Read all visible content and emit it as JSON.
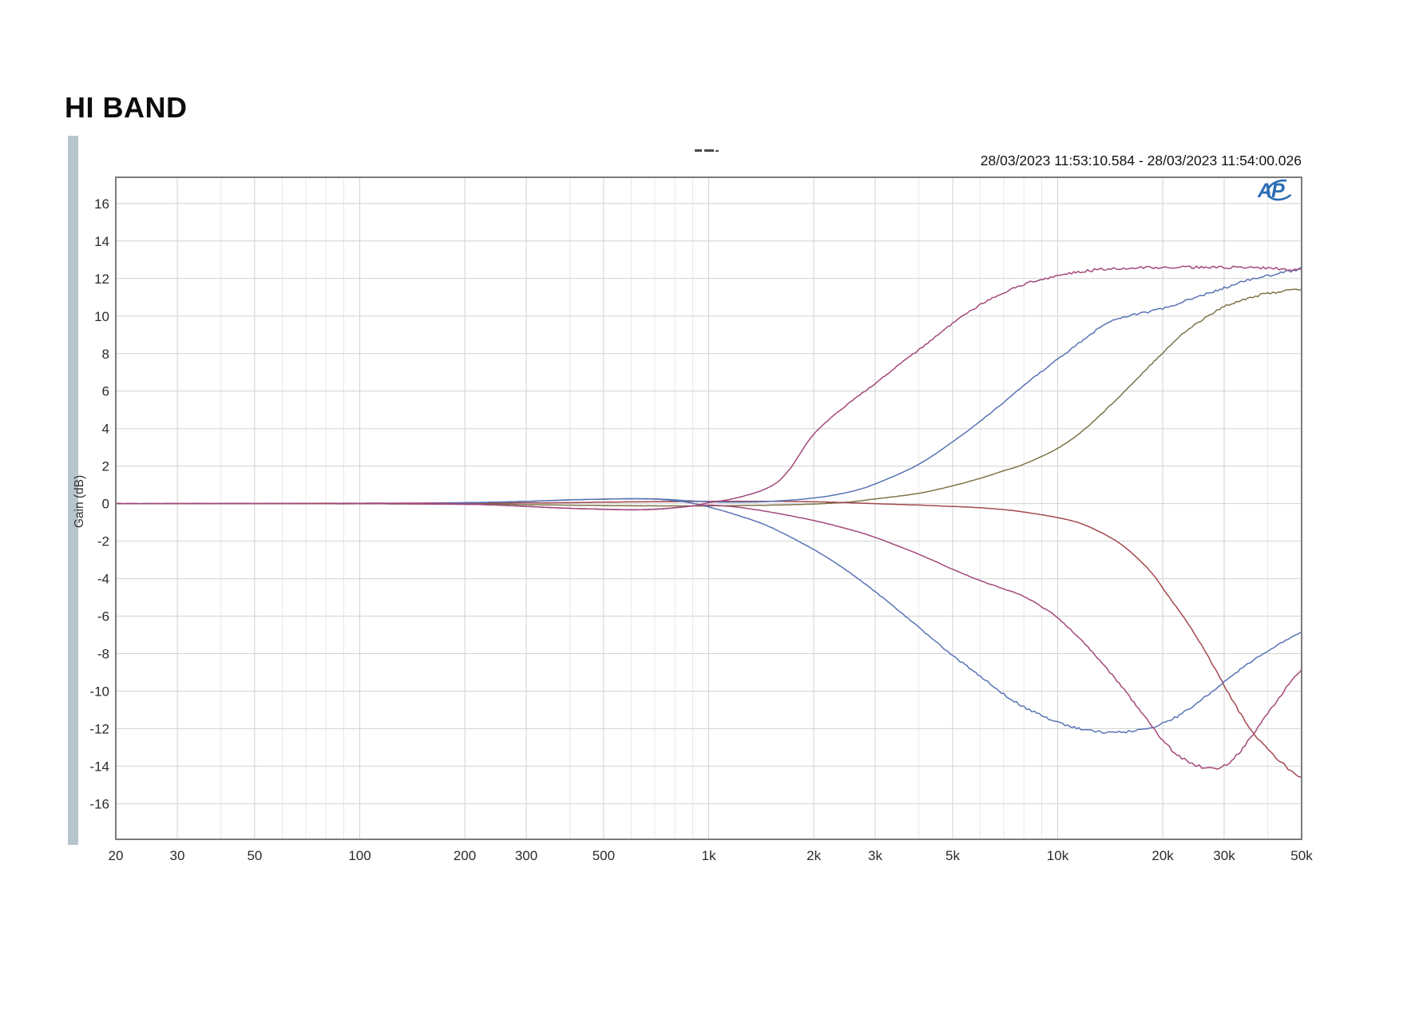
{
  "header": {
    "title": "HI BAND",
    "timestamp": "28/03/2023 11:53:10.584 - 28/03/2023 11:54:00.026"
  },
  "logo": {
    "text": "AP"
  },
  "colors": {
    "accent_bar": "#b7c5cd",
    "grid_major": "#d2d2d2",
    "grid_minor": "#e9e9e9",
    "plot_border": "#7b7b7b",
    "tick_text": "#2b2b2b",
    "logo_blue": "#2a6db5",
    "artifact_gray": "#4a4a4a"
  },
  "chart_data": {
    "type": "line",
    "title": "HI BAND",
    "xlabel": "",
    "ylabel": "Gain (dB)",
    "x_scale": "log",
    "grid": "on",
    "legend": "none",
    "xlim": [
      20,
      50000
    ],
    "ylim": [
      -17.9,
      17.4
    ],
    "y_ticks": [
      {
        "v": 16,
        "label": "16"
      },
      {
        "v": 14,
        "label": "14"
      },
      {
        "v": 12,
        "label": "12"
      },
      {
        "v": 10,
        "label": "10"
      },
      {
        "v": 8,
        "label": "8"
      },
      {
        "v": 6,
        "label": "6"
      },
      {
        "v": 4,
        "label": "4"
      },
      {
        "v": 2,
        "label": "2"
      },
      {
        "v": 0,
        "label": "0"
      },
      {
        "v": -2,
        "label": "-2"
      },
      {
        "v": -4,
        "label": "-4"
      },
      {
        "v": -6,
        "label": "-6"
      },
      {
        "v": -8,
        "label": "-8"
      },
      {
        "v": -10,
        "label": "-10"
      },
      {
        "v": -12,
        "label": "-12"
      },
      {
        "v": -14,
        "label": "-14"
      },
      {
        "v": -16,
        "label": "-16"
      }
    ],
    "x_major_ticks": [
      {
        "f": 20,
        "label": "20"
      },
      {
        "f": 30,
        "label": "30"
      },
      {
        "f": 50,
        "label": "50"
      },
      {
        "f": 100,
        "label": "100"
      },
      {
        "f": 200,
        "label": "200"
      },
      {
        "f": 300,
        "label": "300"
      },
      {
        "f": 500,
        "label": "500"
      },
      {
        "f": 1000,
        "label": "1k"
      },
      {
        "f": 2000,
        "label": "2k"
      },
      {
        "f": 3000,
        "label": "3k"
      },
      {
        "f": 5000,
        "label": "5k"
      },
      {
        "f": 10000,
        "label": "10k"
      },
      {
        "f": 20000,
        "label": "20k"
      },
      {
        "f": 30000,
        "label": "30k"
      },
      {
        "f": 50000,
        "label": "50k"
      }
    ],
    "x_minor_gridlines": [
      40,
      60,
      70,
      80,
      90,
      400,
      600,
      700,
      800,
      900,
      4000,
      6000,
      7000,
      8000,
      9000,
      40000
    ],
    "series": [
      {
        "name": "olive-shelf-boost",
        "color": "#7d7549",
        "points": [
          [
            20,
            0
          ],
          [
            200,
            -0.02
          ],
          [
            300,
            -0.06
          ],
          [
            500,
            -0.1
          ],
          [
            700,
            -0.12
          ],
          [
            1000,
            -0.12
          ],
          [
            1500,
            -0.08
          ],
          [
            2000,
            -0.02
          ],
          [
            2500,
            0.08
          ],
          [
            3000,
            0.25
          ],
          [
            4000,
            0.55
          ],
          [
            5000,
            0.95
          ],
          [
            6000,
            1.35
          ],
          [
            7000,
            1.75
          ],
          [
            8000,
            2.1
          ],
          [
            10000,
            2.95
          ],
          [
            12000,
            4.0
          ],
          [
            15000,
            5.7
          ],
          [
            18000,
            7.2
          ],
          [
            20000,
            8.05
          ],
          [
            22500,
            8.95
          ],
          [
            25000,
            9.6
          ],
          [
            30000,
            10.5
          ],
          [
            35000,
            10.95
          ],
          [
            40000,
            11.2
          ],
          [
            45000,
            11.35
          ],
          [
            50000,
            11.42
          ]
        ]
      },
      {
        "name": "red-shelf-cut",
        "color": "#a2484e",
        "points": [
          [
            20,
            0
          ],
          [
            300,
            0.04
          ],
          [
            500,
            0.08
          ],
          [
            700,
            0.1
          ],
          [
            1000,
            0.12
          ],
          [
            1500,
            0.12
          ],
          [
            2000,
            0.1
          ],
          [
            2500,
            0.05
          ],
          [
            3000,
            0
          ],
          [
            4000,
            -0.08
          ],
          [
            5000,
            -0.15
          ],
          [
            6000,
            -0.22
          ],
          [
            7000,
            -0.32
          ],
          [
            8000,
            -0.45
          ],
          [
            10000,
            -0.75
          ],
          [
            12000,
            -1.15
          ],
          [
            15000,
            -2.1
          ],
          [
            18000,
            -3.4
          ],
          [
            20000,
            -4.5
          ],
          [
            25000,
            -7.1
          ],
          [
            30000,
            -9.7
          ],
          [
            35000,
            -11.8
          ],
          [
            40000,
            -13.1
          ],
          [
            45000,
            -14.0
          ],
          [
            50000,
            -14.6
          ]
        ]
      },
      {
        "name": "blue-shelf-boost",
        "color": "#5973b4",
        "points": [
          [
            20,
            0
          ],
          [
            100,
            0
          ],
          [
            200,
            0.05
          ],
          [
            300,
            0.12
          ],
          [
            400,
            0.2
          ],
          [
            500,
            0.24
          ],
          [
            600,
            0.26
          ],
          [
            700,
            0.25
          ],
          [
            800,
            0.2
          ],
          [
            900,
            0.14
          ],
          [
            1000,
            0.1
          ],
          [
            1200,
            0.08
          ],
          [
            1500,
            0.12
          ],
          [
            2000,
            0.3
          ],
          [
            2500,
            0.6
          ],
          [
            3000,
            1.05
          ],
          [
            4000,
            2.1
          ],
          [
            5000,
            3.3
          ],
          [
            6000,
            4.4
          ],
          [
            7000,
            5.4
          ],
          [
            8000,
            6.3
          ],
          [
            10000,
            7.7
          ],
          [
            12000,
            8.8
          ],
          [
            13500,
            9.5
          ],
          [
            15000,
            9.9
          ],
          [
            20000,
            10.4
          ],
          [
            25000,
            11.0
          ],
          [
            30000,
            11.5
          ],
          [
            35000,
            11.9
          ],
          [
            40000,
            12.15
          ],
          [
            45000,
            12.35
          ],
          [
            50000,
            12.55
          ]
        ]
      },
      {
        "name": "blue-shelf-cut",
        "color": "#5973b4",
        "points": [
          [
            20,
            0
          ],
          [
            100,
            0
          ],
          [
            200,
            0.05
          ],
          [
            300,
            0.12
          ],
          [
            400,
            0.2
          ],
          [
            500,
            0.24
          ],
          [
            600,
            0.26
          ],
          [
            700,
            0.24
          ],
          [
            800,
            0.15
          ],
          [
            900,
            0.02
          ],
          [
            1000,
            -0.18
          ],
          [
            1200,
            -0.6
          ],
          [
            1500,
            -1.25
          ],
          [
            2000,
            -2.45
          ],
          [
            2500,
            -3.6
          ],
          [
            3000,
            -4.7
          ],
          [
            3500,
            -5.7
          ],
          [
            4000,
            -6.6
          ],
          [
            5000,
            -8.1
          ],
          [
            6000,
            -9.2
          ],
          [
            7000,
            -10.15
          ],
          [
            8000,
            -10.85
          ],
          [
            9000,
            -11.3
          ],
          [
            10000,
            -11.65
          ],
          [
            11000,
            -11.9
          ],
          [
            12000,
            -12.05
          ],
          [
            13000,
            -12.15
          ],
          [
            14000,
            -12.2
          ],
          [
            15000,
            -12.2
          ],
          [
            16000,
            -12.15
          ],
          [
            18000,
            -12.0
          ],
          [
            20000,
            -11.7
          ],
          [
            22000,
            -11.35
          ],
          [
            25000,
            -10.65
          ],
          [
            28000,
            -9.95
          ],
          [
            30000,
            -9.5
          ],
          [
            35000,
            -8.55
          ],
          [
            40000,
            -7.85
          ],
          [
            45000,
            -7.3
          ],
          [
            50000,
            -6.85
          ]
        ]
      },
      {
        "name": "magenta-shelf-boost",
        "color": "#a3497a",
        "points": [
          [
            20,
            0
          ],
          [
            50,
            0
          ],
          [
            100,
            0
          ],
          [
            150,
            0.02
          ],
          [
            200,
            -0.02
          ],
          [
            250,
            -0.08
          ],
          [
            300,
            -0.15
          ],
          [
            400,
            -0.25
          ],
          [
            500,
            -0.3
          ],
          [
            600,
            -0.33
          ],
          [
            700,
            -0.3
          ],
          [
            800,
            -0.22
          ],
          [
            900,
            -0.12
          ],
          [
            1000,
            0.05
          ],
          [
            1200,
            0.3
          ],
          [
            1500,
            0.9
          ],
          [
            1700,
            1.8
          ],
          [
            2000,
            3.7
          ],
          [
            2500,
            5.3
          ],
          [
            3000,
            6.4
          ],
          [
            3500,
            7.4
          ],
          [
            4000,
            8.2
          ],
          [
            5000,
            9.6
          ],
          [
            6000,
            10.6
          ],
          [
            7000,
            11.2
          ],
          [
            8000,
            11.7
          ],
          [
            10000,
            12.15
          ],
          [
            12000,
            12.4
          ],
          [
            15000,
            12.55
          ],
          [
            20000,
            12.6
          ],
          [
            25000,
            12.6
          ],
          [
            30000,
            12.6
          ],
          [
            40000,
            12.55
          ],
          [
            50000,
            12.45
          ]
        ]
      },
      {
        "name": "magenta-shelf-cut",
        "color": "#a3497a",
        "points": [
          [
            20,
            0
          ],
          [
            100,
            0
          ],
          [
            150,
            -0.02
          ],
          [
            200,
            -0.04
          ],
          [
            250,
            -0.08
          ],
          [
            300,
            -0.15
          ],
          [
            400,
            -0.25
          ],
          [
            500,
            -0.3
          ],
          [
            600,
            -0.33
          ],
          [
            700,
            -0.3
          ],
          [
            800,
            -0.22
          ],
          [
            900,
            -0.12
          ],
          [
            1000,
            -0.08
          ],
          [
            1200,
            -0.18
          ],
          [
            1500,
            -0.45
          ],
          [
            2000,
            -0.9
          ],
          [
            2500,
            -1.35
          ],
          [
            3000,
            -1.8
          ],
          [
            4000,
            -2.7
          ],
          [
            5000,
            -3.5
          ],
          [
            6000,
            -4.1
          ],
          [
            7000,
            -4.55
          ],
          [
            8000,
            -4.95
          ],
          [
            9000,
            -5.5
          ],
          [
            10000,
            -6.1
          ],
          [
            12000,
            -7.5
          ],
          [
            15000,
            -9.6
          ],
          [
            18000,
            -11.5
          ],
          [
            20000,
            -12.6
          ],
          [
            22000,
            -13.4
          ],
          [
            25000,
            -13.95
          ],
          [
            27000,
            -14.1
          ],
          [
            29000,
            -14.05
          ],
          [
            31000,
            -13.8
          ],
          [
            33000,
            -13.3
          ],
          [
            35000,
            -12.7
          ],
          [
            37500,
            -11.95
          ],
          [
            40000,
            -11.15
          ],
          [
            43000,
            -10.4
          ],
          [
            46000,
            -9.6
          ],
          [
            50000,
            -8.85
          ]
        ]
      }
    ]
  }
}
